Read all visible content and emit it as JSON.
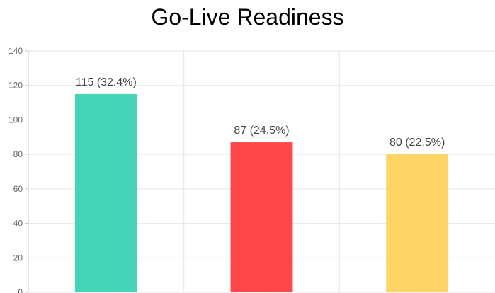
{
  "chart_data": {
    "type": "bar",
    "title": "Go-Live Readiness",
    "categories": [
      "",
      "",
      ""
    ],
    "values": [
      115,
      87,
      80
    ],
    "data_labels": [
      "115 (32.4%)",
      "87 (24.5%)",
      "80 (22.5%)"
    ],
    "colors": [
      "#45d4b6",
      "#ff4649",
      "#fed566"
    ],
    "ylim": [
      0,
      140
    ],
    "yticks": [
      0,
      20,
      40,
      60,
      80,
      100,
      120,
      140
    ],
    "xlabel": "",
    "ylabel": "",
    "grid": true,
    "legend": "none"
  }
}
